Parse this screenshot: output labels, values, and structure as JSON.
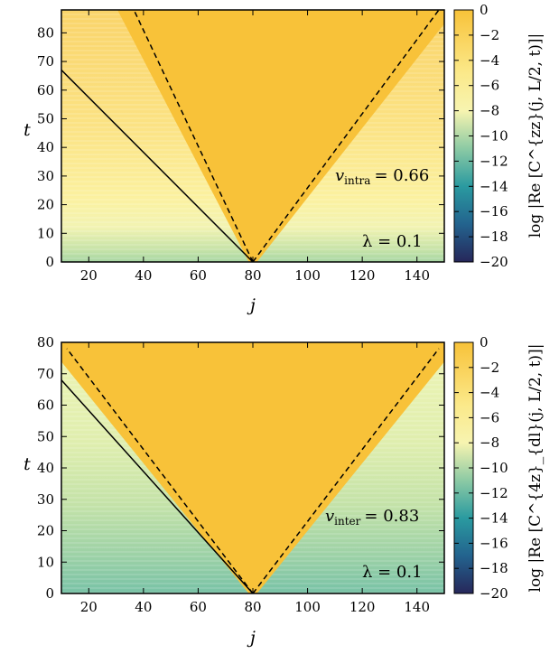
{
  "colors": {
    "cone": "#f8c239",
    "cmap": [
      "#26275a",
      "#23638e",
      "#2a9aa0",
      "#8ccaa4",
      "#f7f4b0",
      "#fbe98a",
      "#f8c239"
    ]
  },
  "chart_data": [
    {
      "type": "heatmap",
      "xlabel": "j",
      "ylabel": "t",
      "xlim": [
        10,
        150
      ],
      "ylim": [
        0,
        88
      ],
      "xticks": [
        20,
        40,
        60,
        80,
        100,
        120,
        140
      ],
      "yticks": [
        0,
        10,
        20,
        30,
        40,
        50,
        60,
        70,
        80
      ],
      "colorbar": {
        "label": "log |Re [C^{zz}(j, L/2, t)]|",
        "range": [
          -20,
          0
        ],
        "ticks": [
          0,
          -2,
          -4,
          -6,
          -8,
          -10,
          -12,
          -14,
          -16,
          -18,
          -20
        ]
      },
      "center_j": 80,
      "velocity_label": "v_intra = 0.66",
      "velocity_label_parts": {
        "symbol": "v",
        "subscript": "intra",
        "equals": "= 0.66"
      },
      "velocity": 0.66,
      "lambda_label": "λ = 0.1",
      "lines": [
        {
          "style": "solid",
          "points": [
            [
              10,
              67
            ],
            [
              80,
              0
            ]
          ]
        },
        {
          "style": "dashed",
          "points": [
            [
              80,
              0
            ],
            [
              36.5,
              88
            ]
          ]
        },
        {
          "style": "dashed",
          "points": [
            [
              80,
              0
            ],
            [
              148,
              88
            ]
          ]
        }
      ]
    },
    {
      "type": "heatmap",
      "xlabel": "j",
      "ylabel": "t",
      "xlim": [
        10,
        150
      ],
      "ylim": [
        0,
        80
      ],
      "xticks": [
        20,
        40,
        60,
        80,
        100,
        120,
        140
      ],
      "yticks": [
        0,
        10,
        20,
        30,
        40,
        50,
        60,
        70,
        80
      ],
      "colorbar": {
        "label": "log |Re [C^{4z}_{dl}(j, L/2, t)]|",
        "range": [
          -20,
          0
        ],
        "ticks": [
          0,
          -2,
          -4,
          -6,
          -8,
          -10,
          -12,
          -14,
          -16,
          -18,
          -20
        ]
      },
      "center_j": 80,
      "velocity_label": "v_inter = 0.83",
      "velocity_label_parts": {
        "symbol": "v",
        "subscript": "inter",
        "equals": "= 0.83"
      },
      "velocity": 0.83,
      "lambda_label": "λ = 0.1",
      "lines": [
        {
          "style": "solid",
          "points": [
            [
              10,
              68
            ],
            [
              80,
              0
            ]
          ]
        },
        {
          "style": "dashed",
          "points": [
            [
              80,
              0
            ],
            [
              12,
              78
            ]
          ]
        },
        {
          "style": "dashed",
          "points": [
            [
              80,
              0
            ],
            [
              148,
              78
            ]
          ]
        }
      ]
    }
  ]
}
